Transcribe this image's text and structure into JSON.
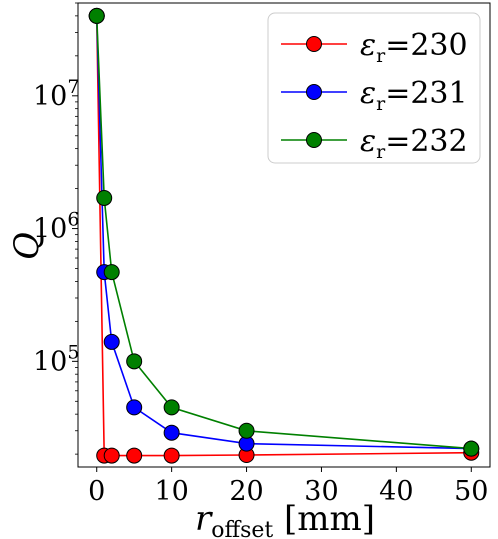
{
  "chart_data": {
    "type": "line",
    "title": "",
    "xlabel": "r_offset [mm]",
    "xlabel_main": "r",
    "xlabel_sub": "offset",
    "xlabel_unit": "[mm]",
    "ylabel": "Q",
    "yscale": "log",
    "xlim": [
      -2.5,
      52.5
    ],
    "ylim": [
      16000,
      50000000
    ],
    "xticks": [
      0,
      10,
      20,
      30,
      40,
      50
    ],
    "xtick_labels": [
      "0",
      "10",
      "20",
      "30",
      "40",
      "50"
    ],
    "yticks": [
      100000,
      1000000,
      10000000
    ],
    "ytick_labels": [
      {
        "base": "10",
        "exp": "5"
      },
      {
        "base": "10",
        "exp": "6"
      },
      {
        "base": "10",
        "exp": "7"
      }
    ],
    "grid": false,
    "legend_position": "top-right",
    "series": [
      {
        "name": "εr=230",
        "label_symbol": "ε",
        "label_sub": "r",
        "label_value": "=230",
        "color": "#ff0000",
        "x": [
          0,
          1,
          2,
          5,
          10,
          20,
          50
        ],
        "y": [
          40000000,
          19500,
          19500,
          19500,
          19500,
          19700,
          20500
        ]
      },
      {
        "name": "εr=231",
        "label_symbol": "ε",
        "label_sub": "r",
        "label_value": "=231",
        "color": "#0000ff",
        "x": [
          0,
          1,
          2,
          5,
          10,
          20,
          50
        ],
        "y": [
          40000000,
          470000,
          140000,
          45000,
          29000,
          24000,
          22000
        ]
      },
      {
        "name": "εr=232",
        "label_symbol": "ε",
        "label_sub": "r",
        "label_value": "=232",
        "color": "#008000",
        "x": [
          0,
          1,
          2,
          5,
          10,
          20,
          50
        ],
        "y": [
          40000000,
          1700000,
          470000,
          100000,
          45000,
          30000,
          22000
        ]
      }
    ]
  }
}
